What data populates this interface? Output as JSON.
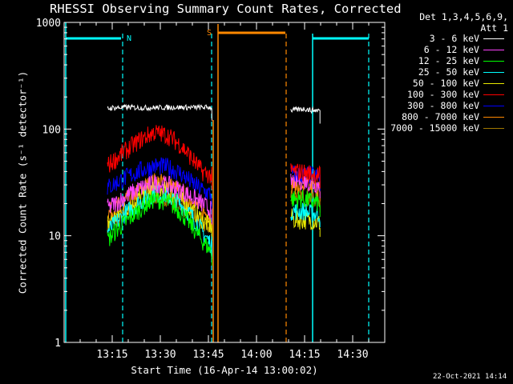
{
  "chart_data": {
    "type": "line",
    "title": "RHESSI Observing Summary Count Rates, Corrected",
    "xlabel": "Start Time (16-Apr-14 13:00:02)",
    "ylabel": "Corrected Count Rate (s⁻¹ detector⁻¹)",
    "yscale": "log",
    "ylim": [
      1,
      1000
    ],
    "xlim_minutes": [
      0,
      100
    ],
    "yticks": [
      {
        "value": 1,
        "label": "1"
      },
      {
        "value": 10,
        "label": "10"
      },
      {
        "value": 100,
        "label": "100"
      },
      {
        "value": 1000,
        "label": "1000"
      }
    ],
    "xticks": [
      {
        "value": 15,
        "label": "13:15"
      },
      {
        "value": 30,
        "label": "13:30"
      },
      {
        "value": 45,
        "label": "13:45"
      },
      {
        "value": 60,
        "label": "14:00"
      },
      {
        "value": 75,
        "label": "14:15"
      },
      {
        "value": 90,
        "label": "14:30"
      }
    ],
    "legend_header": [
      "Det 1,3,4,5,6,9,",
      "Att 1"
    ],
    "series": [
      {
        "name": "3 - 6 keV",
        "color": "#ffffff",
        "segments": [
          {
            "x": [
              13.5,
              15,
              20,
              25,
              30,
              35,
              40,
              45,
              46.1
            ],
            "y": [
              155,
              158,
              160,
              158,
              159,
              160,
              159,
              160,
              160
            ]
          },
          {
            "x": [
              70.7,
              73,
              75,
              77,
              79.8
            ],
            "y": [
              150,
              152,
              155,
              150,
              150
            ]
          }
        ]
      },
      {
        "name": "6 - 12 keV",
        "color": "#ff44ff",
        "segments": [
          {
            "x": [
              13.5,
              16,
              20,
              24,
              28,
              32,
              36,
              40,
              43,
              46.1
            ],
            "y": [
              18,
              20,
              24,
              28,
              31,
              30,
              27,
              23,
              20,
              17
            ]
          },
          {
            "x": [
              70.7,
              72,
              75,
              77,
              79.8
            ],
            "y": [
              32,
              33,
              33,
              31,
              30
            ]
          }
        ]
      },
      {
        "name": "12 - 25 keV",
        "color": "#00ff00",
        "segments": [
          {
            "x": [
              13.5,
              16,
              20,
              24,
              28,
              32,
              36,
              40,
              43,
              46.1
            ],
            "y": [
              9,
              11,
              14,
              18,
              22,
              21,
              17,
              12,
              9,
              7
            ]
          },
          {
            "x": [
              70.7,
              72,
              75,
              77,
              79.8
            ],
            "y": [
              22,
              22,
              22,
              21,
              20
            ]
          }
        ]
      },
      {
        "name": "25 - 50 keV",
        "color": "#00ffff",
        "segments": [
          {
            "x": [
              13.5,
              16,
              20,
              24,
              28,
              32,
              36,
              40,
              43,
              46.1
            ],
            "y": [
              11,
              13,
              17,
              21,
              25,
              24,
              20,
              15,
              11,
              8
            ]
          },
          {
            "x": [
              70.7,
              72,
              75,
              77,
              79.8
            ],
            "y": [
              17,
              17,
              17,
              16,
              16
            ]
          }
        ]
      },
      {
        "name": "50 - 100 keV",
        "color": "#e8e800",
        "segments": [
          {
            "x": [
              13.5,
              16,
              20,
              24,
              28,
              32,
              36,
              40,
              43,
              46.1
            ],
            "y": [
              13,
              15,
              19,
              23,
              27,
              26,
              22,
              17,
              14,
              12
            ]
          },
          {
            "x": [
              70.7,
              72,
              75,
              77,
              79.8
            ],
            "y": [
              15,
              14,
              14,
              14,
              13
            ]
          }
        ]
      },
      {
        "name": "100 - 300 keV",
        "color": "#ff0000",
        "segments": [
          {
            "x": [
              13.5,
              16,
              20,
              24,
              28,
              32,
              36,
              40,
              43,
              46.1
            ],
            "y": [
              45,
              52,
              65,
              80,
              93,
              88,
              72,
              52,
              40,
              36
            ]
          },
          {
            "x": [
              70.7,
              72,
              75,
              77,
              79.8
            ],
            "y": [
              40,
              40,
              39,
              38,
              37
            ]
          }
        ]
      },
      {
        "name": "300 - 800 keV",
        "color": "#0000ff",
        "segments": [
          {
            "x": [
              13.5,
              16,
              20,
              24,
              28,
              32,
              36,
              40,
              43,
              46.1
            ],
            "y": [
              28,
              31,
              36,
              41,
              45,
              44,
              39,
              31,
              27,
              24
            ]
          },
          {
            "x": [
              70.7,
              72,
              75,
              77,
              79.8
            ],
            "y": [
              38,
              38,
              37,
              37,
              35
            ]
          }
        ]
      },
      {
        "name": "800 - 7000 keV",
        "color": "#ff8800",
        "segments": [
          {
            "x": [
              13.5,
              16,
              20,
              24,
              28,
              32,
              36,
              40,
              43,
              46.1
            ],
            "y": [
              16,
              18,
              22,
              27,
              32,
              31,
              26,
              21,
              17,
              15
            ]
          },
          {
            "x": [
              70.7,
              72,
              75,
              77,
              79.8
            ],
            "y": [
              30,
              30,
              30,
              29,
              28
            ]
          }
        ]
      },
      {
        "name": "7000 - 15000 keV",
        "color": "#a07800",
        "segments": [
          {
            "x": [
              13.5,
              16,
              20,
              24,
              28,
              32,
              36,
              40,
              43,
              46.1
            ],
            "y": [
              13,
              14,
              17,
              20,
              24,
              23,
              20,
              16,
              13,
              12
            ]
          },
          {
            "x": [
              70.7,
              72,
              75,
              77,
              79.8
            ],
            "y": [
              24,
              24,
              23,
              23,
              22
            ]
          }
        ]
      }
    ],
    "markers": [
      {
        "label": "N",
        "color": "#00ffff",
        "x": 15.3
      },
      {
        "label": "S",
        "color": "#ff8800",
        "x": 47.8
      }
    ]
  },
  "footer_date": "22-Oct-2021 14:14"
}
